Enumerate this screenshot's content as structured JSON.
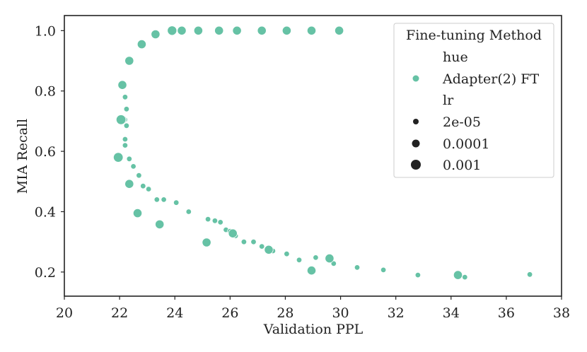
{
  "chart_data": {
    "type": "scatter",
    "xlabel": "Validation PPL",
    "ylabel": "MIA Recall",
    "xlim": [
      20,
      38
    ],
    "ylim": [
      0.12,
      1.05
    ],
    "xticks": [
      "20",
      "22",
      "24",
      "26",
      "28",
      "30",
      "32",
      "34",
      "36",
      "38"
    ],
    "yticks": [
      "0.2",
      "0.4",
      "0.6",
      "0.8",
      "1.0"
    ],
    "grid": false,
    "legend": {
      "placement": "top-right",
      "title": "Fine-tuning Method",
      "hue_header": "hue",
      "hue_entry": "Adapter(2) FT",
      "size_header": "lr",
      "size_entries": [
        "2e-05",
        "0.0001",
        "0.001"
      ]
    },
    "color": "#66c2a5",
    "series": [
      {
        "lr": "2e-05",
        "points": [
          [
            22.2,
            0.78
          ],
          [
            22.2,
            0.705
          ],
          [
            22.25,
            0.74
          ],
          [
            22.25,
            0.685
          ],
          [
            22.2,
            0.64
          ],
          [
            22.2,
            0.62
          ],
          [
            22.35,
            0.575
          ],
          [
            22.5,
            0.55
          ],
          [
            22.7,
            0.52
          ],
          [
            22.85,
            0.485
          ],
          [
            23.05,
            0.475
          ],
          [
            23.35,
            0.44
          ],
          [
            23.6,
            0.44
          ],
          [
            24.05,
            0.43
          ],
          [
            24.5,
            0.4
          ],
          [
            25.2,
            0.375
          ],
          [
            25.45,
            0.37
          ],
          [
            25.65,
            0.365
          ],
          [
            25.85,
            0.34
          ],
          [
            26.0,
            0.335
          ],
          [
            26.2,
            0.32
          ],
          [
            26.5,
            0.3
          ],
          [
            26.85,
            0.3
          ],
          [
            27.15,
            0.285
          ],
          [
            27.55,
            0.27
          ],
          [
            28.05,
            0.26
          ],
          [
            28.5,
            0.24
          ],
          [
            29.1,
            0.248
          ],
          [
            29.75,
            0.228
          ],
          [
            30.6,
            0.215
          ],
          [
            31.55,
            0.207
          ],
          [
            32.8,
            0.19
          ],
          [
            34.5,
            0.183
          ],
          [
            36.85,
            0.192
          ]
        ]
      },
      {
        "lr": "0.0001",
        "points": [
          [
            23.3,
            0.988
          ],
          [
            24.25,
            1.0
          ],
          [
            24.85,
            1.0
          ],
          [
            25.6,
            1.0
          ],
          [
            26.25,
            1.0
          ],
          [
            27.15,
            1.0
          ],
          [
            28.05,
            1.0
          ],
          [
            28.95,
            1.0
          ],
          [
            29.95,
            1.0
          ],
          [
            22.8,
            0.955
          ],
          [
            22.35,
            0.9
          ],
          [
            22.1,
            0.82
          ],
          [
            22.1,
            0.705
          ],
          [
            22.35,
            0.492
          ],
          [
            22.65,
            0.395
          ],
          [
            23.45,
            0.358
          ],
          [
            25.15,
            0.298
          ],
          [
            26.1,
            0.328
          ],
          [
            27.4,
            0.274
          ],
          [
            29.6,
            0.245
          ],
          [
            28.95,
            0.205
          ],
          [
            34.25,
            0.19
          ]
        ]
      },
      {
        "lr": "0.001",
        "points": [
          [
            23.9,
            1.0
          ]
        ]
      }
    ],
    "extra_large_points": [
      [
        21.95,
        0.58
      ],
      [
        22.05,
        0.705
      ]
    ]
  }
}
